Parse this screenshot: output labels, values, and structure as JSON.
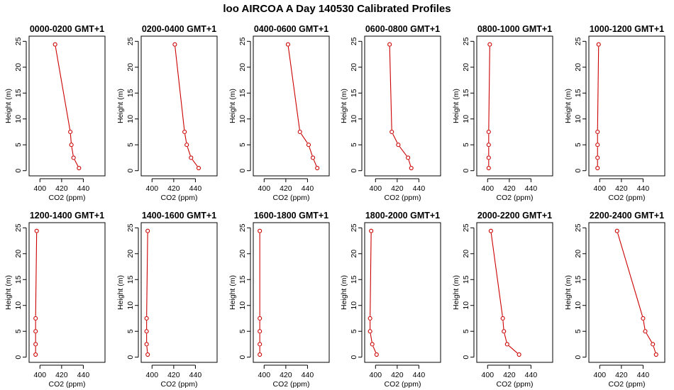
{
  "title": "loo AIRCOA A  Day 140530  Calibrated Profiles",
  "colors": {
    "series": "#cc0000",
    "axis": "#000000"
  },
  "chart_data": [
    {
      "type": "line",
      "title": "0000-0200 GMT+1",
      "xlabel": "CO2 (ppm)",
      "ylabel": "Height (m)",
      "xlim": [
        390,
        460
      ],
      "ylim": [
        -1,
        26
      ],
      "x": [
        436,
        431,
        429,
        428,
        414
      ],
      "y": [
        0.5,
        2.5,
        5,
        7.5,
        24.4
      ]
    },
    {
      "type": "line",
      "title": "0200-0400 GMT+1",
      "xlabel": "CO2 (ppm)",
      "ylabel": "Height (m)",
      "xlim": [
        390,
        460
      ],
      "ylim": [
        -1,
        26
      ],
      "x": [
        443,
        436,
        432,
        430,
        421
      ],
      "y": [
        0.5,
        2.5,
        5,
        7.5,
        24.4
      ]
    },
    {
      "type": "line",
      "title": "0400-0600 GMT+1",
      "xlabel": "CO2 (ppm)",
      "ylabel": "Height (m)",
      "xlim": [
        390,
        460
      ],
      "ylim": [
        -1,
        26
      ],
      "x": [
        449,
        445,
        441,
        433,
        422
      ],
      "y": [
        0.5,
        2.5,
        5,
        7.5,
        24.4
      ]
    },
    {
      "type": "line",
      "title": "0600-0800 GMT+1",
      "xlabel": "CO2 (ppm)",
      "ylabel": "Height (m)",
      "xlim": [
        390,
        460
      ],
      "ylim": [
        -1,
        26
      ],
      "x": [
        433,
        430,
        421,
        415,
        413
      ],
      "y": [
        0.5,
        2.5,
        5,
        7.5,
        24.4
      ]
    },
    {
      "type": "line",
      "title": "0800-1000 GMT+1",
      "xlabel": "CO2 (ppm)",
      "ylabel": "Height (m)",
      "xlim": [
        390,
        460
      ],
      "ylim": [
        -1,
        26
      ],
      "x": [
        401,
        401,
        401,
        401,
        402
      ],
      "y": [
        0.5,
        2.5,
        5,
        7.5,
        24.4
      ]
    },
    {
      "type": "line",
      "title": "1000-1200 GMT+1",
      "xlabel": "CO2 (ppm)",
      "ylabel": "Height (m)",
      "xlim": [
        390,
        460
      ],
      "ylim": [
        -1,
        26
      ],
      "x": [
        398,
        398,
        398,
        398,
        399
      ],
      "y": [
        0.5,
        2.5,
        5,
        7.5,
        24.4
      ]
    },
    {
      "type": "line",
      "title": "1200-1400 GMT+1",
      "xlabel": "CO2 (ppm)",
      "ylabel": "Height (m)",
      "xlim": [
        390,
        460
      ],
      "ylim": [
        -1,
        26
      ],
      "x": [
        396,
        396,
        396,
        396,
        397
      ],
      "y": [
        0.5,
        2.5,
        5,
        7.5,
        24.4
      ]
    },
    {
      "type": "line",
      "title": "1400-1600 GMT+1",
      "xlabel": "CO2 (ppm)",
      "ylabel": "Height (m)",
      "xlim": [
        390,
        460
      ],
      "ylim": [
        -1,
        26
      ],
      "x": [
        396,
        395,
        395,
        395,
        396
      ],
      "y": [
        0.5,
        2.5,
        5,
        7.5,
        24.4
      ]
    },
    {
      "type": "line",
      "title": "1600-1800 GMT+1",
      "xlabel": "CO2 (ppm)",
      "ylabel": "Height (m)",
      "xlim": [
        390,
        460
      ],
      "ylim": [
        -1,
        26
      ],
      "x": [
        396,
        396,
        396,
        396,
        396
      ],
      "y": [
        0.5,
        2.5,
        5,
        7.5,
        24.4
      ]
    },
    {
      "type": "line",
      "title": "1800-2000 GMT+1",
      "xlabel": "CO2 (ppm)",
      "ylabel": "Height (m)",
      "xlim": [
        390,
        460
      ],
      "ylim": [
        -1,
        26
      ],
      "x": [
        401,
        397,
        395,
        395,
        396
      ],
      "y": [
        0.5,
        2.5,
        5,
        7.5,
        24.4
      ]
    },
    {
      "type": "line",
      "title": "2000-2200 GMT+1",
      "xlabel": "CO2 (ppm)",
      "ylabel": "Height (m)",
      "xlim": [
        390,
        460
      ],
      "ylim": [
        -1,
        26
      ],
      "x": [
        429,
        418,
        415,
        414,
        403
      ],
      "y": [
        0.5,
        2.5,
        5,
        7.5,
        24.4
      ]
    },
    {
      "type": "line",
      "title": "2200-2400 GMT+1",
      "xlabel": "CO2 (ppm)",
      "ylabel": "Height (m)",
      "xlim": [
        390,
        460
      ],
      "ylim": [
        -1,
        26
      ],
      "x": [
        452,
        449,
        442,
        440,
        416
      ],
      "y": [
        0.5,
        2.5,
        5,
        7.5,
        24.4
      ]
    }
  ],
  "axes": {
    "x_ticks": [
      "400",
      "420",
      "440"
    ],
    "x_tick_values": [
      400,
      420,
      440
    ],
    "y_ticks": [
      "0",
      "5",
      "10",
      "15",
      "20",
      "25"
    ],
    "y_tick_values": [
      0,
      5,
      10,
      15,
      20,
      25
    ]
  }
}
